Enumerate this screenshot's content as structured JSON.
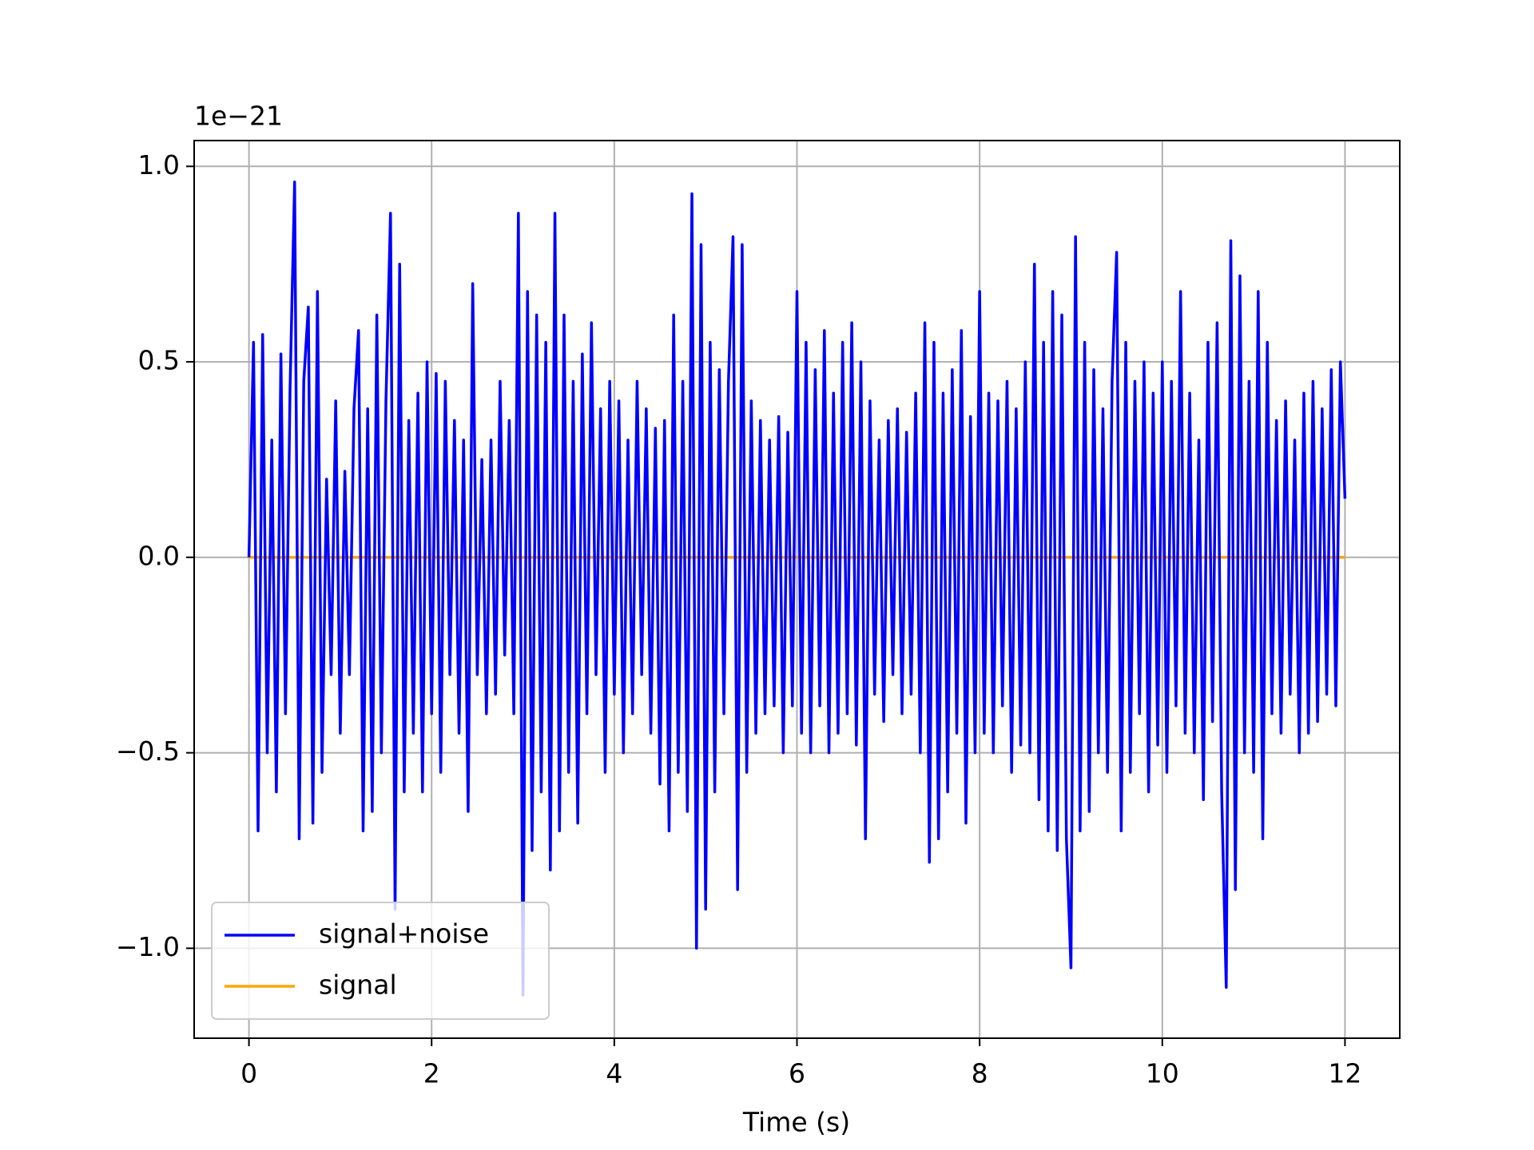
{
  "chart_data": {
    "type": "line",
    "offset_text": "1e−21",
    "xlabel": "Time (s)",
    "xlim": [
      -0.6,
      12.6
    ],
    "xticks": [
      0,
      2,
      4,
      6,
      8,
      10,
      12
    ],
    "ylim": [
      -1.23,
      1.066
    ],
    "yticks": [
      {
        "value": -1.0,
        "label": "−1.0"
      },
      {
        "value": -0.5,
        "label": "−0.5"
      },
      {
        "value": 0,
        "label": "0.0"
      },
      {
        "value": 0.5,
        "label": "0.5"
      },
      {
        "value": 1.0,
        "label": "1.0"
      }
    ],
    "grid": true,
    "legend": "lower left",
    "x": [
      0,
      0.05,
      0.1,
      0.15,
      0.2,
      0.25,
      0.3,
      0.35,
      0.4,
      0.45,
      0.5,
      0.55,
      0.6,
      0.65,
      0.7,
      0.75,
      0.8,
      0.85,
      0.9,
      0.95,
      1,
      1.05,
      1.1,
      1.15,
      1.2,
      1.25,
      1.3,
      1.35,
      1.4,
      1.45,
      1.5,
      1.55,
      1.6,
      1.65,
      1.7,
      1.75,
      1.8,
      1.85,
      1.9,
      1.95,
      2,
      2.05,
      2.1,
      2.15,
      2.2,
      2.25,
      2.3,
      2.35,
      2.4,
      2.45,
      2.5,
      2.55,
      2.6,
      2.65,
      2.7,
      2.75,
      2.8,
      2.85,
      2.9,
      2.95,
      3,
      3.05,
      3.1,
      3.15,
      3.2,
      3.25,
      3.3,
      3.35,
      3.4,
      3.45,
      3.5,
      3.55,
      3.6,
      3.65,
      3.7,
      3.75,
      3.8,
      3.85,
      3.9,
      3.95,
      4,
      4.05,
      4.1,
      4.15,
      4.2,
      4.25,
      4.3,
      4.35,
      4.4,
      4.45,
      4.5,
      4.55,
      4.6,
      4.65,
      4.7,
      4.75,
      4.8,
      4.85,
      4.9,
      4.95,
      5,
      5.05,
      5.1,
      5.15,
      5.2,
      5.25,
      5.3,
      5.35,
      5.4,
      5.45,
      5.5,
      5.55,
      5.6,
      5.65,
      5.7,
      5.75,
      5.8,
      5.85,
      5.9,
      5.95,
      6,
      6.05,
      6.1,
      6.15,
      6.2,
      6.25,
      6.3,
      6.35,
      6.4,
      6.45,
      6.5,
      6.55,
      6.6,
      6.65,
      6.7,
      6.75,
      6.8,
      6.85,
      6.9,
      6.95,
      7,
      7.05,
      7.1,
      7.15,
      7.2,
      7.25,
      7.3,
      7.35,
      7.4,
      7.45,
      7.5,
      7.55,
      7.6,
      7.65,
      7.7,
      7.75,
      7.8,
      7.85,
      7.9,
      7.95,
      8,
      8.05,
      8.1,
      8.15,
      8.2,
      8.25,
      8.3,
      8.35,
      8.4,
      8.45,
      8.5,
      8.55,
      8.6,
      8.65,
      8.7,
      8.75,
      8.8,
      8.85,
      8.9,
      8.95,
      9,
      9.05,
      9.1,
      9.15,
      9.2,
      9.25,
      9.3,
      9.35,
      9.4,
      9.45,
      9.5,
      9.55,
      9.6,
      9.65,
      9.7,
      9.75,
      9.8,
      9.85,
      9.9,
      9.95,
      10,
      10.05,
      10.1,
      10.15,
      10.2,
      10.25,
      10.3,
      10.35,
      10.4,
      10.45,
      10.5,
      10.55,
      10.6,
      10.65,
      10.7,
      10.75,
      10.8,
      10.85,
      10.9,
      10.95,
      11,
      11.05,
      11.1,
      11.15,
      11.2,
      11.25,
      11.3,
      11.35,
      11.4,
      11.45,
      11.5,
      11.55,
      11.6,
      11.65,
      11.7,
      11.75,
      11.8,
      11.85,
      11.9,
      11.95,
      12
    ],
    "series": [
      {
        "name": "signal+noise",
        "color": "#0000ff",
        "values": [
          0,
          0.55,
          -0.7,
          0.57,
          -0.5,
          0.3,
          -0.6,
          0.52,
          -0.4,
          0.43,
          0.96,
          -0.72,
          0.45,
          0.64,
          -0.68,
          0.68,
          -0.55,
          0.2,
          -0.3,
          0.4,
          -0.45,
          0.22,
          -0.3,
          0.38,
          0.58,
          -0.7,
          0.38,
          -0.65,
          0.62,
          -0.5,
          0.4,
          0.88,
          -0.9,
          0.75,
          -0.6,
          0.35,
          -0.45,
          0.42,
          -0.6,
          0.5,
          -0.4,
          0.47,
          -0.55,
          0.45,
          -0.3,
          0.35,
          -0.45,
          0.3,
          -0.65,
          0.7,
          -0.3,
          0.25,
          -0.4,
          0.3,
          -0.35,
          0.45,
          -0.25,
          0.35,
          -0.4,
          0.88,
          -1.12,
          0.68,
          -0.75,
          0.62,
          -0.6,
          0.55,
          -0.8,
          0.88,
          -0.7,
          0.62,
          -0.55,
          0.45,
          -0.68,
          0.52,
          -0.4,
          0.6,
          -0.3,
          0.38,
          -0.55,
          0.45,
          -0.35,
          0.4,
          -0.5,
          0.3,
          -0.4,
          0.45,
          -0.3,
          0.38,
          -0.45,
          0.33,
          -0.58,
          0.35,
          -0.7,
          0.62,
          -0.55,
          0.45,
          -0.65,
          0.93,
          -1.0,
          0.8,
          -0.9,
          0.55,
          -0.6,
          0.48,
          -0.4,
          0.45,
          0.82,
          -0.85,
          0.8,
          -0.55,
          0.4,
          -0.45,
          0.35,
          -0.4,
          0.3,
          -0.38,
          0.36,
          -0.5,
          0.32,
          -0.38,
          0.68,
          -0.45,
          0.55,
          -0.5,
          0.48,
          -0.38,
          0.58,
          -0.5,
          0.42,
          -0.45,
          0.55,
          -0.4,
          0.6,
          -0.48,
          0.5,
          -0.72,
          0.4,
          -0.35,
          0.3,
          -0.42,
          0.35,
          -0.3,
          0.38,
          -0.4,
          0.32,
          -0.35,
          0.42,
          -0.5,
          0.6,
          -0.78,
          0.55,
          -0.72,
          0.42,
          -0.6,
          0.48,
          -0.45,
          0.58,
          -0.68,
          0.36,
          -0.5,
          0.68,
          -0.45,
          0.42,
          -0.5,
          0.4,
          -0.38,
          0.45,
          -0.55,
          0.38,
          -0.48,
          0.5,
          -0.5,
          0.75,
          -0.62,
          0.55,
          -0.7,
          0.68,
          -0.75,
          0.62,
          -0.72,
          -1.05,
          0.82,
          -0.7,
          0.55,
          -0.65,
          0.48,
          -0.5,
          0.38,
          -0.55,
          0.45,
          0.78,
          -0.7,
          0.55,
          -0.55,
          0.45,
          -0.4,
          0.5,
          -0.6,
          0.42,
          -0.48,
          0.5,
          -0.55,
          0.45,
          -0.38,
          0.68,
          -0.45,
          0.42,
          -0.5,
          0.3,
          -0.62,
          0.55,
          -0.42,
          0.6,
          -0.6,
          -1.1,
          0.81,
          -0.85,
          0.72,
          -0.5,
          0.45,
          -0.55,
          0.68,
          -0.72,
          0.55,
          -0.4,
          0.35,
          -0.45,
          0.4,
          -0.35,
          0.3,
          -0.5,
          0.42,
          -0.45,
          0.45,
          -0.42,
          0.38,
          -0.35,
          0.48,
          -0.38,
          0.5,
          0.15
        ]
      },
      {
        "name": "signal",
        "color": "#ffa500",
        "values": [
          0,
          0,
          0,
          0,
          0,
          0,
          0,
          0,
          0,
          0,
          0,
          0,
          0,
          0,
          0,
          0,
          0,
          0,
          0,
          0,
          0,
          0,
          0,
          0,
          0,
          0,
          0,
          0,
          0,
          0,
          0,
          0,
          0,
          0,
          0,
          0,
          0,
          0,
          0,
          0,
          0,
          0,
          0,
          0,
          0,
          0,
          0,
          0,
          0,
          0,
          0,
          0,
          0,
          0,
          0,
          0,
          0,
          0,
          0,
          0,
          0,
          0,
          0,
          0,
          0,
          0,
          0,
          0,
          0,
          0,
          0,
          0,
          0,
          0,
          0,
          0,
          0,
          0,
          0,
          0,
          0,
          0,
          0,
          0,
          0,
          0,
          0,
          0,
          0,
          0,
          0,
          0,
          0,
          0,
          0,
          0,
          0,
          0,
          0,
          0,
          0,
          0,
          0,
          0,
          0,
          0,
          0,
          0,
          0,
          0,
          0,
          0,
          0,
          0,
          0,
          0,
          0,
          0,
          0,
          0,
          0,
          0,
          0,
          0,
          0,
          0,
          0,
          0,
          0,
          0,
          0,
          0,
          0,
          0,
          0,
          0,
          0,
          0,
          0,
          0,
          0,
          0,
          0,
          0,
          0,
          0,
          0,
          0,
          0,
          0,
          0,
          0,
          0,
          0,
          0,
          0,
          0,
          0,
          0,
          0,
          0,
          0,
          0,
          0,
          0,
          0,
          0,
          0,
          0,
          0,
          0,
          0,
          0,
          0,
          0,
          0,
          0,
          0,
          0,
          0,
          0,
          0,
          0,
          0,
          0,
          0,
          0,
          0,
          0,
          0,
          0,
          0,
          0,
          0,
          0,
          0,
          0,
          0,
          0,
          0,
          0,
          0,
          0,
          0,
          0,
          0,
          0,
          0,
          0,
          0,
          0,
          0,
          0,
          0,
          0,
          0,
          0,
          0,
          0,
          0,
          0,
          0,
          0,
          0,
          0,
          0,
          0,
          0,
          0,
          0,
          0,
          0,
          0,
          0,
          0,
          0,
          0,
          0,
          0,
          0,
          0
        ]
      }
    ]
  }
}
